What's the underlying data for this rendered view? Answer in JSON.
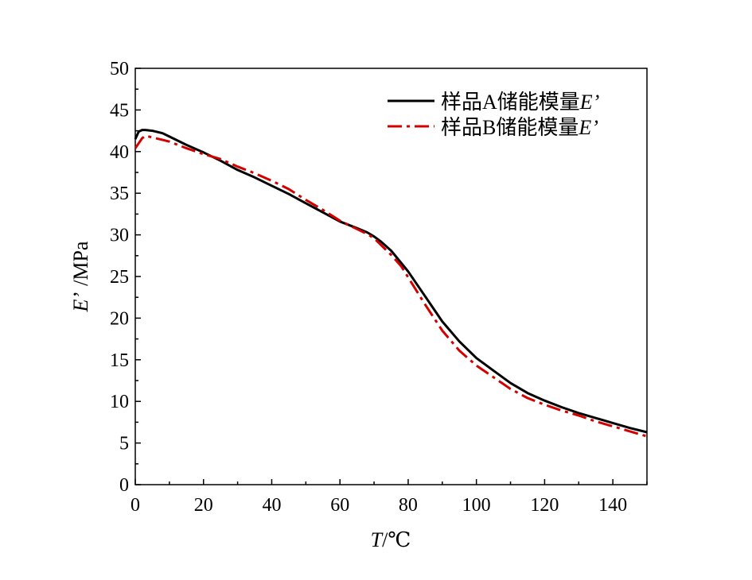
{
  "chart_data": {
    "type": "line",
    "title": "",
    "xlabel": {
      "var": "T",
      "unit": "/℃"
    },
    "ylabel": {
      "var": "E’",
      "unit": "/MPa"
    },
    "xlim": [
      0,
      150
    ],
    "ylim": [
      0,
      50
    ],
    "xticks": [
      0,
      20,
      40,
      60,
      80,
      100,
      120,
      140
    ],
    "yticks": [
      0,
      5,
      10,
      15,
      20,
      25,
      30,
      35,
      40,
      45,
      50
    ],
    "grid": false,
    "legend_position": "top-right",
    "series": [
      {
        "name": "样品A储能模量E’",
        "legend_text": "样品A储能模量",
        "legend_var": "E’",
        "color": "#000000",
        "style": "solid",
        "x": [
          0,
          1,
          2,
          3,
          5,
          8,
          10,
          15,
          20,
          25,
          30,
          35,
          40,
          45,
          50,
          55,
          60,
          65,
          68,
          70,
          72,
          75,
          78,
          80,
          85,
          90,
          95,
          100,
          105,
          110,
          115,
          120,
          125,
          130,
          135,
          140,
          145,
          150
        ],
        "y": [
          41.5,
          42.4,
          42.6,
          42.6,
          42.5,
          42.2,
          41.8,
          40.8,
          39.9,
          38.9,
          37.8,
          36.9,
          35.9,
          34.9,
          33.8,
          32.7,
          31.6,
          30.8,
          30.3,
          29.8,
          29.2,
          28.1,
          26.6,
          25.6,
          22.6,
          19.6,
          17.2,
          15.2,
          13.7,
          12.2,
          11.0,
          10.1,
          9.3,
          8.6,
          8.0,
          7.4,
          6.8,
          6.3
        ]
      },
      {
        "name": "样品B储能模量E’",
        "legend_text": "样品B储能模量",
        "legend_var": "E’",
        "color": "#d40000",
        "style": "dashdot",
        "x": [
          0,
          1,
          2,
          3,
          5,
          8,
          10,
          15,
          20,
          25,
          30,
          35,
          40,
          45,
          50,
          55,
          60,
          65,
          68,
          70,
          72,
          75,
          78,
          80,
          85,
          90,
          95,
          100,
          105,
          110,
          115,
          120,
          125,
          130,
          135,
          140,
          145,
          150
        ],
        "y": [
          40.4,
          41.0,
          41.6,
          41.9,
          41.7,
          41.4,
          41.2,
          40.4,
          39.7,
          39.1,
          38.2,
          37.4,
          36.5,
          35.5,
          34.2,
          33.0,
          31.7,
          30.7,
          30.1,
          29.6,
          28.8,
          27.6,
          26.2,
          24.9,
          21.6,
          18.5,
          16.1,
          14.3,
          12.9,
          11.5,
          10.4,
          9.6,
          8.9,
          8.3,
          7.6,
          7.0,
          6.4,
          5.8
        ]
      }
    ]
  }
}
